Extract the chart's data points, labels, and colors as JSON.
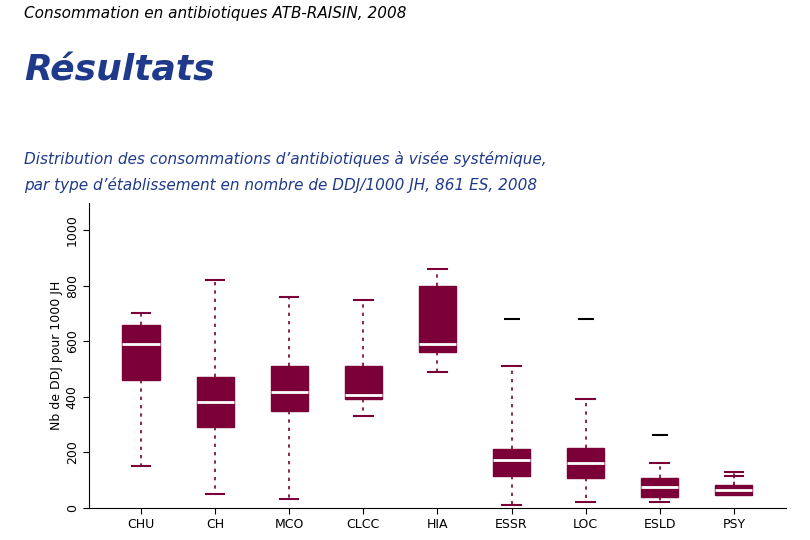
{
  "title_main": "Consommation en antibiotiques ATB-RAISIN, 2008",
  "title_sub1": "Résultats",
  "chart_title_line1": "Distribution des consommations d’antibiotiques à visée systémique,",
  "chart_title_line2": "par type d’établissement en nombre de DDJ/1000 JH, 861 ES, 2008",
  "ylabel": "Nb de DDJ pour 1000 JH",
  "categories": [
    "CHU",
    "CH",
    "MCO",
    "CLCC",
    "HIA",
    "ESSR",
    "LOC",
    "ESLD",
    "PSY"
  ],
  "box_color": "#7B0038",
  "median_color": "#FFFFFF",
  "background_color": "#FFFFFF",
  "sep_color": "#3366CC",
  "title_color": "#000000",
  "subtitle_color": "#1F3A8A",
  "chart_title_color": "#1F3A8A",
  "ylim": [
    0,
    1100
  ],
  "yticks": [
    0,
    200,
    400,
    600,
    800,
    1000
  ],
  "boxes": [
    {
      "q1": 460,
      "median": 590,
      "q3": 660,
      "whislo": 150,
      "whishi": 700,
      "fliers_hi": [],
      "fliers_lo": []
    },
    {
      "q1": 290,
      "median": 380,
      "q3": 470,
      "whislo": 50,
      "whishi": 820,
      "fliers_hi": [],
      "fliers_lo": []
    },
    {
      "q1": 350,
      "median": 415,
      "q3": 510,
      "whislo": 30,
      "whishi": 760,
      "fliers_hi": [],
      "fliers_lo": []
    },
    {
      "q1": 390,
      "median": 405,
      "q3": 510,
      "whislo": 330,
      "whishi": 750,
      "fliers_hi": [],
      "fliers_lo": []
    },
    {
      "q1": 560,
      "median": 590,
      "q3": 800,
      "whislo": 490,
      "whishi": 860,
      "fliers_hi": [],
      "fliers_lo": []
    },
    {
      "q1": 115,
      "median": 170,
      "q3": 210,
      "whislo": 10,
      "whishi": 510,
      "fliers_hi": [
        680
      ],
      "fliers_lo": []
    },
    {
      "q1": 105,
      "median": 160,
      "q3": 215,
      "whislo": 20,
      "whishi": 390,
      "fliers_hi": [
        680
      ],
      "fliers_lo": []
    },
    {
      "q1": 40,
      "median": 75,
      "q3": 105,
      "whislo": 20,
      "whishi": 160,
      "fliers_hi": [
        260
      ],
      "fliers_lo": []
    },
    {
      "q1": 45,
      "median": 65,
      "q3": 80,
      "whislo": 115,
      "whishi": 130,
      "fliers_hi": [],
      "fliers_lo": []
    }
  ],
  "fig_width": 8.1,
  "fig_height": 5.4,
  "dpi": 100
}
